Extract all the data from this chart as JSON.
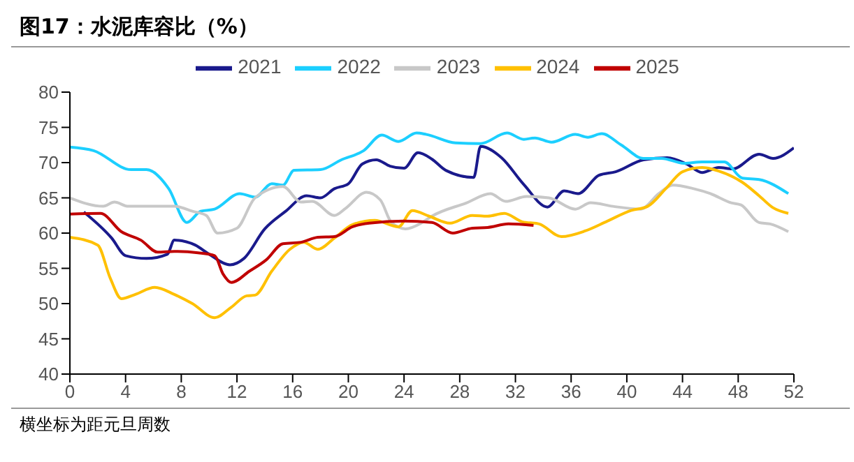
{
  "chart_data": {
    "type": "line",
    "title": "图17：水泥库容比（%）",
    "annotations": [
      "横坐标为距元旦周数"
    ],
    "xlim": [
      0,
      52
    ],
    "xticks": [
      0,
      4,
      8,
      12,
      16,
      20,
      24,
      28,
      32,
      36,
      40,
      44,
      48,
      52
    ],
    "ylim": [
      40,
      80
    ],
    "yticks": [
      40,
      45,
      50,
      55,
      60,
      65,
      70,
      75,
      80
    ],
    "grid": false,
    "legend": "top",
    "marker": "none",
    "line_style": "solid",
    "series": [
      {
        "name": "2021",
        "color": "#1a1a8c",
        "x": [
          1,
          3,
          4,
          5.5,
          7,
          7.5,
          9,
          10,
          11.5,
          12.5,
          14,
          15.5,
          17,
          18,
          19,
          20,
          21,
          22,
          23,
          24,
          25,
          26,
          27,
          29,
          29.5,
          31,
          32.6,
          34.3,
          35.5,
          36.5,
          38,
          39.2,
          41.2,
          42.9,
          44.3,
          45.4,
          46.6,
          47.6,
          49.5,
          50.5,
          52
        ],
        "values": [
          63,
          59.3,
          56.8,
          56.4,
          57,
          59,
          58.3,
          57,
          55.5,
          56.4,
          60.6,
          63.1,
          65.3,
          65,
          66.3,
          67,
          69.8,
          70.4,
          69.5,
          69.2,
          71.4,
          70.5,
          68.9,
          67.9,
          72.3,
          70.7,
          66.9,
          63.7,
          66,
          65.6,
          68.2,
          68.7,
          70.4,
          70.7,
          69.8,
          68.6,
          69.3,
          69.1,
          71.2,
          70.6,
          72.1
        ]
      },
      {
        "name": "2022",
        "color": "#1ccfff",
        "x": [
          0,
          1.7,
          4.4,
          5.5,
          7.1,
          8.4,
          9.4,
          10.4,
          12.2,
          13.3,
          14.5,
          15.3,
          16.1,
          18,
          19.5,
          21.1,
          22.4,
          23.6,
          24.9,
          25.6,
          27.7,
          29.5,
          31.4,
          32.6,
          33.4,
          34.6,
          36.3,
          37.2,
          38.2,
          39.6,
          41.2,
          42.5,
          44.1,
          45.4,
          47,
          48.3,
          49.5,
          51.6
        ],
        "values": [
          72.2,
          71.7,
          69,
          69,
          66.3,
          61.5,
          63.1,
          63.4,
          65.6,
          65.1,
          67,
          66.8,
          68.9,
          69,
          70.4,
          71.7,
          73.9,
          73,
          74.2,
          74,
          72.8,
          72.7,
          74.2,
          73.3,
          73.5,
          72.9,
          74,
          73.6,
          74.1,
          72.5,
          70.6,
          70.6,
          69.9,
          70.1,
          70.1,
          67.8,
          67.6,
          65.6
        ]
      },
      {
        "name": "2023",
        "color": "#c8c8c8",
        "x": [
          0,
          2.4,
          3.2,
          4.2,
          7.5,
          8.8,
          9.8,
          10.6,
          12,
          13.3,
          15.3,
          16.6,
          17.4,
          19,
          19.8,
          21.3,
          22.3,
          23.1,
          24.1,
          25.3,
          26,
          28.5,
          30.2,
          31.3,
          32.8,
          34.4,
          36.3,
          37.4,
          39,
          41,
          42.3,
          43.3,
          44.8,
          46,
          47.5,
          48.2,
          49.5,
          50.3,
          51.6
        ],
        "values": [
          65,
          63.8,
          64.4,
          63.8,
          63.8,
          63.1,
          62.5,
          60,
          60.7,
          65,
          66.6,
          64.4,
          64.5,
          62.5,
          63.5,
          65.8,
          64.7,
          61.5,
          60.6,
          61.5,
          62.4,
          64.3,
          65.6,
          64.5,
          65.2,
          65,
          63.4,
          64.3,
          63.8,
          63.4,
          65.6,
          66.8,
          66.3,
          65.6,
          64.3,
          64,
          61.5,
          61.3,
          60.2
        ]
      },
      {
        "name": "2024",
        "color": "#ffc000",
        "x": [
          0,
          2,
          2.9,
          3.7,
          4.7,
          6.1,
          7.5,
          8.8,
          10.4,
          11.6,
          12.7,
          13.3,
          14.5,
          15.8,
          16.8,
          17.8,
          19,
          20.3,
          21.9,
          23.6,
          24.6,
          25.8,
          27.3,
          28.9,
          30,
          31.2,
          32.5,
          33.7,
          35.3,
          37,
          38.6,
          40.3,
          41.5,
          42.8,
          44,
          45.4,
          46.6,
          48.3,
          49.5,
          50.5,
          51.6
        ],
        "values": [
          59.4,
          58.3,
          53.6,
          50.7,
          51.3,
          52.3,
          51.3,
          50,
          48,
          49.5,
          51.1,
          51.2,
          54.6,
          57.7,
          58.7,
          57.7,
          59.3,
          61.2,
          61.8,
          60.9,
          63.2,
          62.4,
          61.4,
          62.5,
          62.4,
          62.8,
          61.6,
          61.3,
          59.5,
          60.3,
          61.7,
          63.2,
          63.8,
          66.3,
          68.7,
          69.3,
          68.8,
          67.2,
          65.3,
          63.6,
          62.8
        ]
      },
      {
        "name": "2025",
        "color": "#c00000",
        "x": [
          0,
          2.2,
          3.7,
          5.1,
          6.3,
          7.5,
          9.2,
          10.4,
          11,
          11.6,
          12.9,
          14.1,
          15.3,
          16.6,
          17.8,
          19,
          20.3,
          21.5,
          24,
          26,
          27.5,
          28.9,
          30,
          31.5,
          33.3
        ],
        "values": [
          62.7,
          62.8,
          60.2,
          59,
          57.3,
          57.4,
          57.2,
          56.8,
          54.2,
          53,
          54.6,
          56.2,
          58.5,
          58.7,
          59.4,
          59.5,
          60.9,
          61.4,
          61.7,
          61.5,
          60,
          60.7,
          60.8,
          61.3,
          61.1
        ]
      }
    ]
  }
}
